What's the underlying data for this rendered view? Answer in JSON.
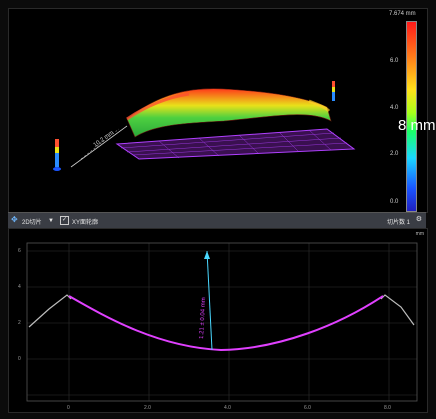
{
  "top_view": {
    "colorbar": {
      "max_label": "7.674 mm",
      "ticks": [
        "6.0",
        "4.0",
        "2.0",
        "0.0"
      ],
      "colors": [
        "#ff1a1a",
        "#ffe21a",
        "#1aff6a",
        "#1ad7ff",
        "#1a55ff"
      ]
    },
    "overlay_text": "8 mm",
    "dimension_label": "10.2 mm"
  },
  "toolbar": {
    "mode_label": "2D切片",
    "checkbox_label": "XY面轮廓",
    "right_label": "切片数 1"
  },
  "profile_view": {
    "unit": "mm",
    "measure_label": "1.21 ± 0.04 mm",
    "y_ticks": [
      "6",
      "4",
      "2",
      "0"
    ],
    "x_ticks": [
      "0",
      "2.0",
      "4.0",
      "6.0",
      "8.0"
    ],
    "curve_color": "#e040ff"
  }
}
